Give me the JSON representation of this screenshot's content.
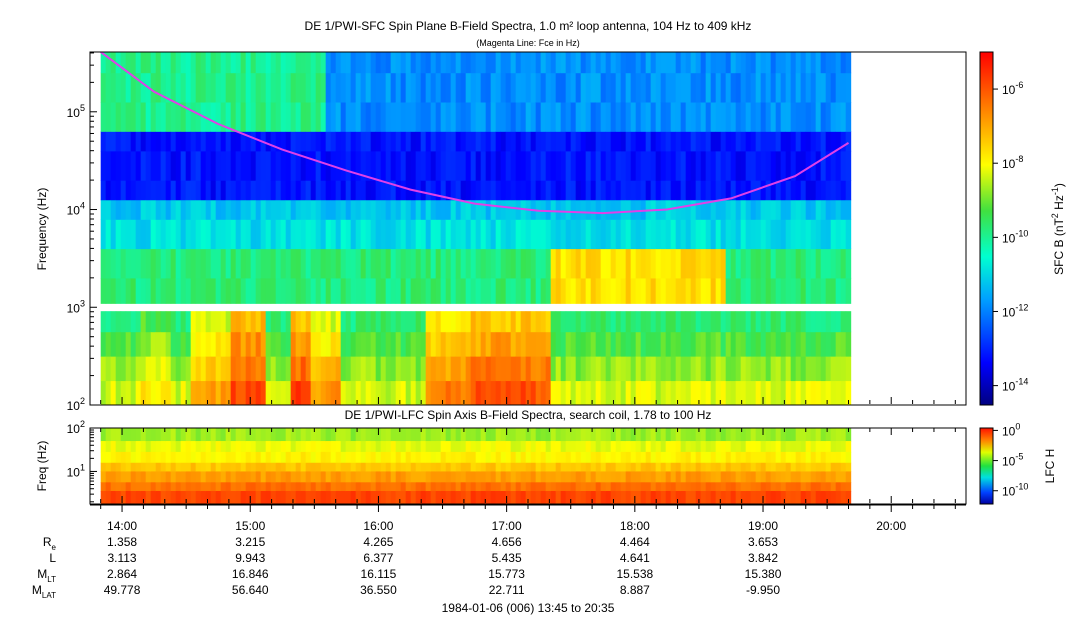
{
  "chart_data": [
    {
      "type": "heatmap",
      "title": "DE 1/PWI-SFC  Spin Plane B-Field Spectra, 1.0 m² loop antenna, 104 Hz to 409 kHz",
      "subtitle": "(Magenta Line: Fce in Hz)",
      "ylabel": "Frequency (Hz)",
      "y_scale": "log",
      "y_tick_labels": [
        {
          "base": "10",
          "exp": "2",
          "value": 100
        },
        {
          "base": "10",
          "exp": "3",
          "value": 1000
        },
        {
          "base": "10",
          "exp": "4",
          "value": 10000
        },
        {
          "base": "10",
          "exp": "5",
          "value": 100000
        }
      ],
      "ylim": [
        100,
        409000
      ],
      "colorbar": {
        "label_parts": [
          "SFC B (nT",
          "2",
          " Hz",
          "-1",
          ")"
        ],
        "ticks": [
          {
            "base": "10",
            "exp": "-6",
            "value": 1e-06
          },
          {
            "base": "10",
            "exp": "-8",
            "value": 1e-08
          },
          {
            "base": "10",
            "exp": "-10",
            "value": 1e-10
          },
          {
            "base": "10",
            "exp": "-12",
            "value": 1e-12
          },
          {
            "base": "10",
            "exp": "-14",
            "value": 1e-14
          }
        ],
        "range": [
          3e-15,
          1e-05
        ],
        "scale": "log"
      },
      "fce_line": {
        "color": "#e040e8",
        "time": [
          "13:50",
          "14:15",
          "14:45",
          "15:15",
          "15:45",
          "16:15",
          "16:45",
          "17:15",
          "17:45",
          "18:15",
          "18:45",
          "19:15",
          "19:40"
        ],
        "freq_hz": [
          410000,
          160000,
          75000,
          41000,
          25000,
          16000,
          11500,
          9700,
          9200,
          10000,
          13000,
          22000,
          48000
        ]
      }
    },
    {
      "type": "heatmap",
      "title": "DE 1/PWI-LFC  Spin Axis B-Field Spectra, search coil, 1.78 to 100 Hz",
      "ylabel": "Freq (Hz)",
      "y_scale": "log",
      "y_tick_labels": [
        {
          "base": "10",
          "exp": "1",
          "value": 10
        },
        {
          "base": "10",
          "exp": "2",
          "value": 100
        }
      ],
      "ylim": [
        1.78,
        100
      ],
      "colorbar": {
        "label": "LFC H",
        "ticks": [
          {
            "base": "10",
            "exp": "0",
            "value": 1
          },
          {
            "base": "10",
            "exp": "-5",
            "value": 1e-05
          },
          {
            "base": "10",
            "exp": "-10",
            "value": 1e-10
          }
        ],
        "scale": "log"
      }
    }
  ],
  "x_axis": {
    "ticks": [
      "13:45",
      "20:35"
    ],
    "tick_labels": [
      "14:00",
      "15:00",
      "16:00",
      "17:00",
      "18:00",
      "19:00",
      "20:00"
    ],
    "caption": "1984-01-06 (006) 13:45 to 20:35"
  },
  "ephemeris": {
    "rows": [
      {
        "name": "R",
        "sub": "e",
        "values": [
          "1.358",
          "3.215",
          "4.265",
          "4.656",
          "4.464",
          "3.653"
        ]
      },
      {
        "name": "L",
        "sub": "",
        "values": [
          "3.113",
          "9.943",
          "6.377",
          "5.435",
          "4.641",
          "3.842"
        ]
      },
      {
        "name": "M",
        "sub": "LT",
        "values": [
          "2.864",
          "16.846",
          "16.115",
          "15.773",
          "15.538",
          "15.380"
        ]
      },
      {
        "name": "M",
        "sub": "LAT",
        "values": [
          "49.778",
          "56.640",
          "36.550",
          "22.711",
          "8.887",
          "-9.950"
        ]
      }
    ]
  }
}
